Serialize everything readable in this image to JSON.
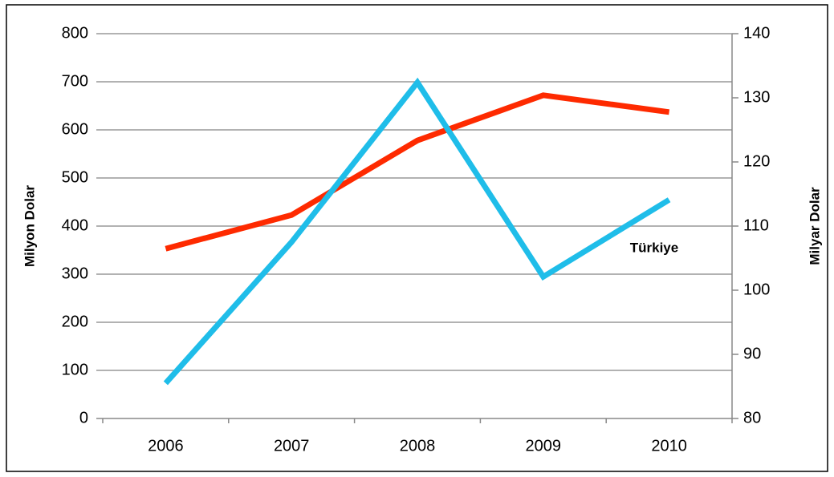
{
  "chart_data": {
    "type": "line",
    "categories": [
      "2006",
      "2007",
      "2008",
      "2009",
      "2010"
    ],
    "ylabel": "Milyon Dolar",
    "y2label": "Milyar Dolar",
    "ylim": [
      0,
      800
    ],
    "yticks": [
      0,
      100,
      200,
      300,
      400,
      500,
      600,
      700,
      800
    ],
    "y2lim": [
      80,
      140
    ],
    "y2ticks": [
      80,
      90,
      100,
      110,
      120,
      130,
      140
    ],
    "grid": true,
    "series": [
      {
        "color": "#fe2a00",
        "values": [
          353,
          423,
          578,
          672,
          637
        ]
      },
      {
        "name": "Türkiye",
        "color": "#1fbde9",
        "axis": "y2",
        "values": [
          85.5,
          107.5,
          132.4,
          102.1,
          114.1
        ]
      }
    ]
  }
}
